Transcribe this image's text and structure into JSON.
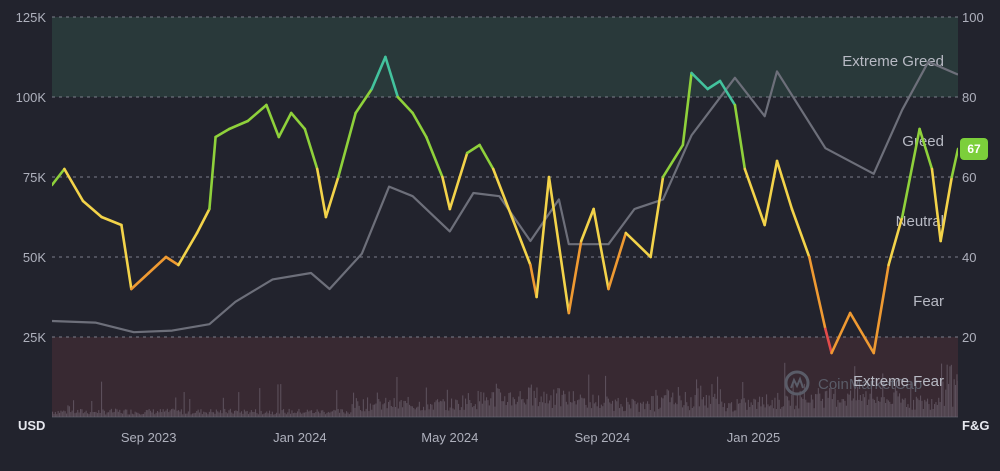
{
  "chart_data": {
    "type": "line",
    "watermark": "CoinMarketCap",
    "left_axis": {
      "unit": "USD",
      "range": [
        0,
        125000
      ],
      "ticks": [
        25000,
        50000,
        75000,
        100000,
        125000
      ],
      "tick_labels": [
        "25K",
        "50K",
        "75K",
        "100K",
        "125K"
      ]
    },
    "right_axis": {
      "unit": "F&G",
      "range": [
        0,
        100
      ],
      "ticks": [
        20,
        40,
        60,
        80,
        100
      ],
      "tick_labels": [
        "20",
        "40",
        "60",
        "80",
        "100"
      ]
    },
    "x_axis": {
      "range": [
        "2023-06-15",
        "2025-06-15"
      ],
      "tick_labels": [
        "Sep 2023",
        "Jan 2024",
        "May 2024",
        "Sep 2024",
        "Jan 2025"
      ],
      "tick_dates": [
        "2023-09-01",
        "2024-01-01",
        "2024-05-01",
        "2024-09-01",
        "2025-01-01"
      ]
    },
    "zones": [
      {
        "label": "Extreme Greed",
        "range": [
          80,
          100
        ],
        "color": "#4f9f78",
        "label_value": 89
      },
      {
        "label": "Greed",
        "range": [
          60,
          80
        ],
        "color": null,
        "label_value": 69
      },
      {
        "label": "Neutral",
        "range": [
          40,
          60
        ],
        "color": null,
        "label_value": 49
      },
      {
        "label": "Fear",
        "range": [
          20,
          40
        ],
        "color": null,
        "label_value": 29
      },
      {
        "label": "Extreme Fear",
        "range": [
          0,
          20
        ],
        "color": "#8a3e46",
        "label_value": 9
      }
    ],
    "grid": true,
    "current_value_badge": {
      "value": 67,
      "label": "67",
      "color": "#7ccf3b"
    },
    "series": [
      {
        "axis": "left",
        "color": "#6d6f7a",
        "points": [
          [
            "2023-06-15",
            30000
          ],
          [
            "2023-07-20",
            29500
          ],
          [
            "2023-08-20",
            26500
          ],
          [
            "2023-09-20",
            27000
          ],
          [
            "2023-10-20",
            29000
          ],
          [
            "2023-11-10",
            36000
          ],
          [
            "2023-12-10",
            43000
          ],
          [
            "2024-01-10",
            45000
          ],
          [
            "2024-01-25",
            40000
          ],
          [
            "2024-02-20",
            51000
          ],
          [
            "2024-03-13",
            72000
          ],
          [
            "2024-04-01",
            69000
          ],
          [
            "2024-05-01",
            58000
          ],
          [
            "2024-05-20",
            70000
          ],
          [
            "2024-06-10",
            69000
          ],
          [
            "2024-07-05",
            55000
          ],
          [
            "2024-07-28",
            68000
          ],
          [
            "2024-08-05",
            54000
          ],
          [
            "2024-09-06",
            54000
          ],
          [
            "2024-09-27",
            65000
          ],
          [
            "2024-10-20",
            68000
          ],
          [
            "2024-11-12",
            88000
          ],
          [
            "2024-12-17",
            106000
          ],
          [
            "2025-01-10",
            94000
          ],
          [
            "2025-01-20",
            108000
          ],
          [
            "2025-02-28",
            84000
          ],
          [
            "2025-04-08",
            76000
          ],
          [
            "2025-05-01",
            96000
          ],
          [
            "2025-05-22",
            111000
          ],
          [
            "2025-06-15",
            107000
          ]
        ]
      },
      {
        "axis": "right",
        "colors": [
          "#e24b4b",
          "#ef9a32",
          "#f3d34a",
          "#8fd13b",
          "#43c39e"
        ],
        "points": [
          [
            "2023-06-15",
            58
          ],
          [
            "2023-06-25",
            62
          ],
          [
            "2023-07-10",
            54
          ],
          [
            "2023-07-25",
            50
          ],
          [
            "2023-08-10",
            48
          ],
          [
            "2023-08-18",
            32
          ],
          [
            "2023-09-01",
            36
          ],
          [
            "2023-09-15",
            40
          ],
          [
            "2023-09-25",
            38
          ],
          [
            "2023-10-10",
            46
          ],
          [
            "2023-10-20",
            52
          ],
          [
            "2023-10-25",
            70
          ],
          [
            "2023-11-05",
            72
          ],
          [
            "2023-11-20",
            74
          ],
          [
            "2023-12-05",
            78
          ],
          [
            "2023-12-15",
            70
          ],
          [
            "2023-12-25",
            76
          ],
          [
            "2024-01-05",
            72
          ],
          [
            "2024-01-15",
            62
          ],
          [
            "2024-01-22",
            50
          ],
          [
            "2024-02-01",
            60
          ],
          [
            "2024-02-15",
            76
          ],
          [
            "2024-02-28",
            82
          ],
          [
            "2024-03-10",
            90
          ],
          [
            "2024-03-20",
            80
          ],
          [
            "2024-04-01",
            76
          ],
          [
            "2024-04-12",
            70
          ],
          [
            "2024-04-25",
            60
          ],
          [
            "2024-05-01",
            52
          ],
          [
            "2024-05-15",
            66
          ],
          [
            "2024-05-25",
            68
          ],
          [
            "2024-06-05",
            62
          ],
          [
            "2024-06-20",
            50
          ],
          [
            "2024-07-05",
            38
          ],
          [
            "2024-07-10",
            30
          ],
          [
            "2024-07-20",
            60
          ],
          [
            "2024-08-05",
            26
          ],
          [
            "2024-08-15",
            44
          ],
          [
            "2024-08-25",
            52
          ],
          [
            "2024-09-06",
            32
          ],
          [
            "2024-09-20",
            46
          ],
          [
            "2024-10-10",
            40
          ],
          [
            "2024-10-20",
            60
          ],
          [
            "2024-11-05",
            68
          ],
          [
            "2024-11-12",
            86
          ],
          [
            "2024-11-25",
            82
          ],
          [
            "2024-12-05",
            84
          ],
          [
            "2024-12-17",
            78
          ],
          [
            "2024-12-25",
            62
          ],
          [
            "2025-01-10",
            48
          ],
          [
            "2025-01-20",
            64
          ],
          [
            "2025-02-01",
            52
          ],
          [
            "2025-02-15",
            40
          ],
          [
            "2025-02-28",
            22
          ],
          [
            "2025-03-05",
            16
          ],
          [
            "2025-03-20",
            26
          ],
          [
            "2025-04-08",
            16
          ],
          [
            "2025-04-20",
            38
          ],
          [
            "2025-05-01",
            50
          ],
          [
            "2025-05-15",
            72
          ],
          [
            "2025-05-25",
            62
          ],
          [
            "2025-06-01",
            44
          ],
          [
            "2025-06-10",
            60
          ],
          [
            "2025-06-15",
            67
          ]
        ]
      }
    ]
  }
}
